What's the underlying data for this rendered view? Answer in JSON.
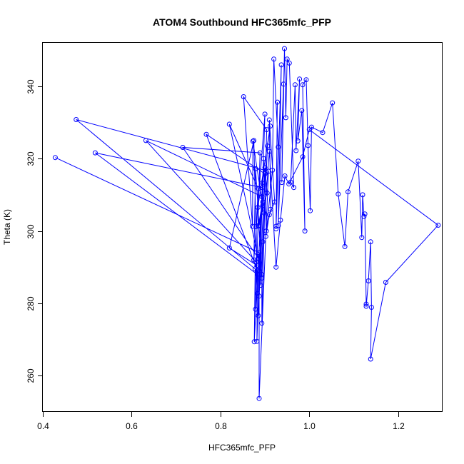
{
  "chart_data": {
    "type": "scatter",
    "title": "ATOM4 Southbound HFC365mfc_PFP",
    "xlabel": "HFC365mfc_PFP",
    "ylabel": "Theta (K)",
    "xlim": [
      0.4,
      1.3
    ],
    "ylim": [
      250,
      352
    ],
    "xticks": [
      0.4,
      0.6,
      0.8,
      1.0,
      1.2
    ],
    "yticks": [
      260,
      280,
      300,
      320,
      340
    ],
    "xtick_labels": [
      "0.4",
      "0.6",
      "0.8",
      "1.0",
      "1.2"
    ],
    "ytick_labels": [
      "260",
      "280",
      "300",
      "320",
      "340"
    ],
    "grid": false,
    "mode": "lines+markers",
    "color": "#0000ff",
    "points": [
      [
        0.428,
        320.3
      ],
      [
        0.887,
        294.0
      ],
      [
        0.887,
        253.7
      ],
      [
        0.908,
        316.5
      ],
      [
        0.475,
        330.8
      ],
      [
        0.878,
        289.5
      ],
      [
        0.876,
        269.4
      ],
      [
        0.894,
        312.0
      ],
      [
        0.518,
        321.6
      ],
      [
        0.883,
        288.0
      ],
      [
        0.882,
        269.5
      ],
      [
        0.893,
        309.5
      ],
      [
        0.632,
        325.0
      ],
      [
        0.88,
        291.5
      ],
      [
        0.879,
        278.4
      ],
      [
        0.889,
        321.6
      ],
      [
        0.715,
        323.1
      ],
      [
        0.885,
        292.5
      ],
      [
        0.885,
        276.6
      ],
      [
        0.9,
        315.8
      ],
      [
        0.768,
        326.7
      ],
      [
        0.883,
        289.0
      ],
      [
        0.883,
        282.7
      ],
      [
        0.875,
        325.0
      ],
      [
        0.82,
        295.3
      ],
      [
        0.882,
        290.5
      ],
      [
        0.88,
        301.2
      ],
      [
        0.885,
        311.7
      ],
      [
        0.82,
        329.5
      ],
      [
        0.893,
        288.0
      ],
      [
        0.893,
        274.5
      ],
      [
        0.904,
        328.0
      ],
      [
        0.852,
        337.1
      ],
      [
        0.872,
        301.3
      ],
      [
        0.873,
        324.8
      ],
      [
        0.895,
        307.0
      ],
      [
        0.887,
        301.4
      ],
      [
        0.879,
        317.2
      ],
      [
        0.875,
        292.0
      ],
      [
        0.9,
        332.3
      ],
      [
        0.887,
        282.0
      ],
      [
        0.894,
        313.3
      ],
      [
        0.9,
        317.5
      ],
      [
        0.905,
        310.5
      ],
      [
        0.885,
        301.5
      ],
      [
        0.895,
        308.0
      ],
      [
        0.897,
        320.0
      ],
      [
        0.903,
        300.0
      ],
      [
        0.913,
        306.0
      ],
      [
        0.91,
        330.7
      ],
      [
        0.922,
        308.0
      ],
      [
        0.91,
        304.5
      ],
      [
        0.902,
        298.5
      ],
      [
        0.917,
        316.8
      ],
      [
        0.92,
        347.5
      ],
      [
        0.93,
        323.2
      ],
      [
        0.925,
        301.3
      ],
      [
        0.928,
        335.6
      ],
      [
        0.925,
        300.6
      ],
      [
        0.937,
        345.9
      ],
      [
        0.93,
        301.5
      ],
      [
        0.942,
        340.6
      ],
      [
        0.938,
        313.4
      ],
      [
        0.944,
        350.4
      ],
      [
        0.947,
        331.3
      ],
      [
        0.95,
        347.5
      ],
      [
        0.955,
        346.4
      ],
      [
        0.965,
        312.0
      ],
      [
        0.958,
        313.5
      ],
      [
        0.968,
        340.4
      ],
      [
        0.97,
        322.2
      ],
      [
        0.978,
        342.0
      ],
      [
        0.974,
        324.9
      ],
      [
        0.983,
        333.3
      ],
      [
        0.99,
        300.0
      ],
      [
        0.985,
        340.4
      ],
      [
        0.993,
        341.8
      ],
      [
        0.997,
        323.6
      ],
      [
        1.002,
        305.6
      ],
      [
        1.005,
        328.7
      ],
      [
        1.03,
        327.2
      ],
      [
        1.052,
        335.4
      ],
      [
        1.065,
        310.2
      ],
      [
        1.08,
        295.7
      ],
      [
        1.087,
        310.8
      ],
      [
        1.11,
        319.3
      ],
      [
        1.118,
        298.2
      ],
      [
        1.12,
        310.0
      ],
      [
        1.123,
        304.0
      ],
      [
        1.125,
        304.7
      ],
      [
        1.128,
        279.8
      ],
      [
        1.128,
        279.2
      ],
      [
        1.133,
        286.2
      ],
      [
        1.138,
        297.0
      ],
      [
        1.14,
        278.9
      ],
      [
        1.138,
        264.6
      ],
      [
        1.172,
        285.8
      ],
      [
        1.29,
        301.6
      ],
      [
        1.0,
        328.0
      ],
      [
        0.985,
        320.5
      ],
      [
        0.954,
        313.0
      ],
      [
        0.945,
        315.2
      ],
      [
        0.935,
        303.0
      ],
      [
        0.925,
        290.0
      ],
      [
        0.91,
        322.0
      ],
      [
        0.895,
        297.0
      ],
      [
        0.89,
        285.0
      ],
      [
        0.906,
        323.5
      ],
      [
        0.912,
        329.0
      ],
      [
        0.884,
        306.5
      ],
      [
        0.893,
        287.0
      ],
      [
        0.898,
        305.0
      ]
    ]
  }
}
